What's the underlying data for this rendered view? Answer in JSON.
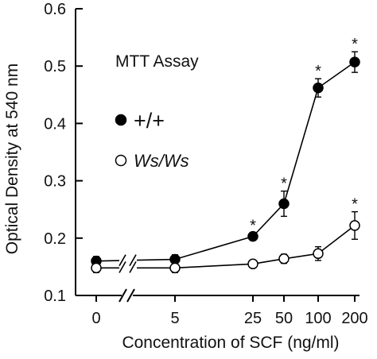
{
  "chart_data": {
    "type": "line",
    "title": "",
    "annotation": "MTT Assay",
    "xlabel": "Concentration of SCF (ng/ml)",
    "ylabel": "Optical Density at 540 nm",
    "x_categories": [
      "0",
      "5",
      "25",
      "50",
      "100",
      "200"
    ],
    "y_ticks": [
      "0.1",
      "0.2",
      "0.3",
      "0.4",
      "0.5",
      "0.6"
    ],
    "ylim": [
      0.1,
      0.6
    ],
    "axis_break": "between 0 and 5",
    "legend_position": "left, below annotation",
    "significance_marker": "*",
    "series": [
      {
        "name": "+/+",
        "marker": "filled-circle",
        "color": "#000000",
        "values": [
          0.16,
          0.163,
          0.203,
          0.26,
          0.462,
          0.507
        ],
        "errors": [
          0.008,
          0.008,
          0.006,
          0.022,
          0.016,
          0.018
        ],
        "significant": [
          false,
          false,
          true,
          true,
          true,
          true
        ]
      },
      {
        "name": "Ws/Ws",
        "marker": "open-circle",
        "color": "#000000",
        "values": [
          0.148,
          0.148,
          0.155,
          0.164,
          0.173,
          0.222
        ],
        "errors": [
          0.008,
          0.008,
          0.006,
          0.008,
          0.012,
          0.024
        ],
        "significant": [
          false,
          false,
          false,
          false,
          false,
          true
        ]
      }
    ]
  }
}
